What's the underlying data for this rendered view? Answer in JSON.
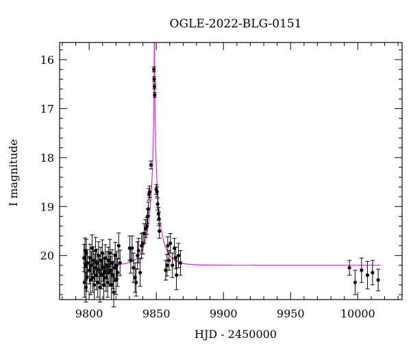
{
  "chart_data": {
    "type": "scatter",
    "title": "OGLE-2022-BLG-0151",
    "xlabel": "HJD - 2450000",
    "ylabel": "I magnitude",
    "xlim": [
      9778,
      10033
    ],
    "ylim": [
      20.9,
      15.65
    ],
    "y_inverted": true,
    "grid": false,
    "legend": "none",
    "x_ticks": [
      9800,
      9850,
      9900,
      9950,
      10000
    ],
    "y_ticks": [
      16,
      17,
      18,
      19,
      20
    ],
    "colors": {
      "points": "#000000",
      "model": "#e020e0"
    },
    "model_curve": {
      "name": "",
      "baseline_mag": 20.2,
      "peak_hjd": 9848.6,
      "u0": 0.012,
      "tE_days": 9.0,
      "x_range": [
        9796,
        10017
      ]
    },
    "series": [
      {
        "name": "",
        "points": [
          [
            9796.2,
            20.05,
            0.28
          ],
          [
            9796.5,
            20.55,
            0.3
          ],
          [
            9796.9,
            19.9,
            0.26
          ],
          [
            9797.3,
            20.2,
            0.3
          ],
          [
            9797.6,
            20.65,
            0.3
          ],
          [
            9797.9,
            19.95,
            0.28
          ],
          [
            9798.3,
            20.45,
            0.28
          ],
          [
            9798.7,
            20.15,
            0.27
          ],
          [
            9800.2,
            20.3,
            0.28
          ],
          [
            9800.6,
            20.05,
            0.28
          ],
          [
            9801.1,
            20.5,
            0.3
          ],
          [
            9801.6,
            20.2,
            0.28
          ],
          [
            9802.2,
            19.85,
            0.27
          ],
          [
            9802.7,
            20.45,
            0.3
          ],
          [
            9803.2,
            20.1,
            0.28
          ],
          [
            9803.8,
            20.6,
            0.3
          ],
          [
            9804.3,
            20.25,
            0.28
          ],
          [
            9804.8,
            19.9,
            0.27
          ],
          [
            9805.3,
            20.4,
            0.3
          ],
          [
            9805.9,
            20.15,
            0.28
          ],
          [
            9806.4,
            20.55,
            0.3
          ],
          [
            9807.0,
            20.0,
            0.28
          ],
          [
            9807.5,
            20.3,
            0.28
          ],
          [
            9808.1,
            20.65,
            0.3
          ],
          [
            9808.6,
            20.1,
            0.27
          ],
          [
            9809.2,
            20.4,
            0.28
          ],
          [
            9809.8,
            19.95,
            0.27
          ],
          [
            9810.3,
            20.25,
            0.28
          ],
          [
            9810.9,
            20.6,
            0.3
          ],
          [
            9811.4,
            20.35,
            0.28
          ],
          [
            9812.0,
            20.05,
            0.27
          ],
          [
            9812.6,
            20.45,
            0.28
          ],
          [
            9813.2,
            20.2,
            0.28
          ],
          [
            9813.8,
            20.55,
            0.3
          ],
          [
            9814.3,
            20.1,
            0.27
          ],
          [
            9814.9,
            20.35,
            0.28
          ],
          [
            9815.4,
            19.95,
            0.28
          ],
          [
            9816.0,
            20.3,
            0.28
          ],
          [
            9816.6,
            20.6,
            0.3
          ],
          [
            9817.1,
            20.15,
            0.27
          ],
          [
            9817.7,
            20.4,
            0.28
          ],
          [
            9818.3,
            20.75,
            0.3
          ],
          [
            9818.9,
            20.25,
            0.28
          ],
          [
            9819.4,
            20.0,
            0.27
          ],
          [
            9820.0,
            20.5,
            0.3
          ],
          [
            9820.6,
            20.2,
            0.28
          ],
          [
            9821.2,
            20.35,
            0.28
          ],
          [
            9822.0,
            19.8,
            0.26
          ],
          [
            9823.0,
            20.15,
            0.26
          ],
          [
            9830.2,
            19.85,
            0.25
          ],
          [
            9831.0,
            20.1,
            0.26
          ],
          [
            9832.0,
            19.85,
            0.25
          ],
          [
            9833.0,
            20.25,
            0.3
          ],
          [
            9834.2,
            20.45,
            0.3
          ],
          [
            9835.0,
            20.55,
            0.28
          ],
          [
            9836.0,
            20.0,
            0.28
          ],
          [
            9836.8,
            19.9,
            0.25
          ],
          [
            9838.0,
            20.35,
            0.28
          ],
          [
            9839.0,
            19.8,
            0.25
          ],
          [
            9840.0,
            19.75,
            0.22
          ],
          [
            9841.0,
            19.55,
            0.2
          ],
          [
            9842.0,
            19.45,
            0.18
          ],
          [
            9843.0,
            19.4,
            0.17
          ],
          [
            9843.5,
            19.2,
            0.15
          ],
          [
            9844.0,
            19.05,
            0.14
          ],
          [
            9844.5,
            18.75,
            0.12
          ],
          [
            9845.0,
            18.7,
            0.12
          ],
          [
            9846.0,
            18.15,
            0.08
          ],
          [
            9848.2,
            16.2,
            0.05
          ],
          [
            9848.4,
            16.4,
            0.05
          ],
          [
            9848.6,
            16.55,
            0.05
          ],
          [
            9848.8,
            16.72,
            0.05
          ],
          [
            9850.0,
            18.65,
            0.1
          ],
          [
            9850.5,
            18.7,
            0.1
          ],
          [
            9851.0,
            18.95,
            0.12
          ],
          [
            9851.6,
            19.15,
            0.13
          ],
          [
            9852.0,
            19.25,
            0.14
          ],
          [
            9852.3,
            19.5,
            0.15
          ],
          [
            9857.0,
            20.3,
            0.2
          ],
          [
            9858.0,
            20.2,
            0.22
          ],
          [
            9858.5,
            19.8,
            0.18
          ],
          [
            9859.5,
            20.1,
            0.2
          ],
          [
            9860.5,
            19.75,
            0.2
          ],
          [
            9862.0,
            20.2,
            0.25
          ],
          [
            9863.5,
            19.85,
            0.2
          ],
          [
            9864.5,
            20.05,
            0.22
          ],
          [
            9865.0,
            20.4,
            0.3
          ],
          [
            9866.5,
            20.0,
            0.25
          ],
          [
            9868.0,
            20.15,
            0.25
          ],
          [
            9993.8,
            20.25,
            0.15
          ],
          [
            9998.0,
            20.55,
            0.25
          ],
          [
            10002.8,
            20.3,
            0.25
          ],
          [
            10007.2,
            20.4,
            0.28
          ],
          [
            10011.0,
            20.35,
            0.25
          ],
          [
            10015.2,
            20.5,
            0.22
          ]
        ]
      }
    ]
  }
}
